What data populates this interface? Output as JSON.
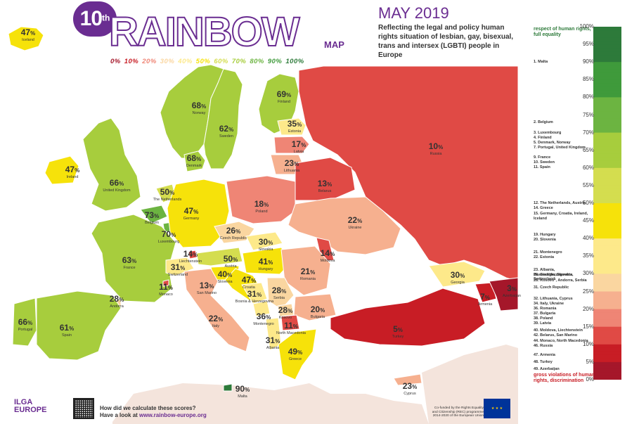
{
  "header": {
    "edition": "10",
    "edition_suffix": "th",
    "brand": "RAINBOW",
    "brand_sub": "MAP",
    "date": "MAY 2019",
    "subtitle": "Reflecting the legal and policy human rights situation of lesbian, gay, bisexual, trans and intersex (LGBTI) people in Europe",
    "scale_labels": [
      "0%",
      "10%",
      "20%",
      "30%",
      "40%",
      "50%",
      "60%",
      "70%",
      "80%",
      "90%",
      "100%"
    ]
  },
  "palette": {
    "sea": "#ffffff",
    "land_other": "#f4e4dc",
    "brand_purple": "#6a2d91",
    "scale": [
      "#a5172a",
      "#c81d25",
      "#e04a45",
      "#ef8575",
      "#f6b08f",
      "#fad6a0",
      "#fde98a",
      "#f6e20a",
      "#d4dd4f",
      "#a7cd3d",
      "#6cb441",
      "#3f9a3b",
      "#2d7a3a",
      "#1b6632"
    ]
  },
  "legend": {
    "top_label": "respect of human rights, full equality",
    "bottom_label": "gross violations of human rights, discrimination",
    "ticks": [
      "100%",
      "95%",
      "90%",
      "85%",
      "80%",
      "75%",
      "70%",
      "65%",
      "60%",
      "55%",
      "50%",
      "45%",
      "40%",
      "35%",
      "30%",
      "25%",
      "20%",
      "15%",
      "10%",
      "5%",
      "0%"
    ],
    "ranks": [
      {
        "score": 90,
        "text": "1. Malta"
      },
      {
        "score": 73,
        "text": "2. Belgium"
      },
      {
        "score": 70,
        "text": "3. Luxembourg"
      },
      {
        "score": 69,
        "text": "4. Finland"
      },
      {
        "score": 68,
        "text": "5. Denmark, Norway"
      },
      {
        "score": 66,
        "text": "7. Portugal, United Kingdom"
      },
      {
        "score": 63,
        "text": "9. France"
      },
      {
        "score": 62,
        "text": "10. Sweden"
      },
      {
        "score": 61,
        "text": "11. Spain"
      },
      {
        "score": 50,
        "text": "12. The Netherlands, Austria"
      },
      {
        "score": 49,
        "text": "14. Greece"
      },
      {
        "score": 47,
        "text": "15. Germany, Croatia, Ireland, Iceland"
      },
      {
        "score": 41,
        "text": "19. Hungary"
      },
      {
        "score": 40,
        "text": "20. Slovenia"
      },
      {
        "score": 36,
        "text": "21. Montenegro"
      },
      {
        "score": 35,
        "text": "22. Estonia"
      },
      {
        "score": 31,
        "text": "23. Albania, Bosnia&Herzegovina, Switzerland"
      },
      {
        "score": 30,
        "text": "26. Georgia, Slovakia"
      },
      {
        "score": 28,
        "text": "28. Kosovo*, Andorra, Serbia"
      },
      {
        "score": 26,
        "text": "31. Czech Republic"
      },
      {
        "score": 23,
        "text": "32. Lithuania, Cyprus"
      },
      {
        "score": 22,
        "text": "34. Italy, Ukraine"
      },
      {
        "score": 21,
        "text": "36. Romania"
      },
      {
        "score": 20,
        "text": "37. Bulgaria"
      },
      {
        "score": 18,
        "text": "38. Poland"
      },
      {
        "score": 17,
        "text": "39. Latvia"
      },
      {
        "score": 14,
        "text": "40. Moldova, Liechtenstein"
      },
      {
        "score": 13,
        "text": "42. Belarus, San Marino"
      },
      {
        "score": 11,
        "text": "44. Monaco, North Macedonia"
      },
      {
        "score": 10,
        "text": "46. Russia"
      },
      {
        "score": 7,
        "text": "47. Armenia"
      },
      {
        "score": 5,
        "text": "48. Turkey"
      },
      {
        "score": 3,
        "text": "49. Azerbaijan"
      }
    ]
  },
  "countries": [
    {
      "name": "Iceland",
      "score": 47
    },
    {
      "name": "Norway",
      "score": 68
    },
    {
      "name": "Sweden",
      "score": 62
    },
    {
      "name": "Finland",
      "score": 69
    },
    {
      "name": "Estonia",
      "score": 35
    },
    {
      "name": "Latvia",
      "score": 17
    },
    {
      "name": "Lithuania",
      "score": 23
    },
    {
      "name": "Russia",
      "score": 10
    },
    {
      "name": "Denmark",
      "score": 68
    },
    {
      "name": "Ireland",
      "score": 47
    },
    {
      "name": "United Kingdom",
      "score": 66
    },
    {
      "name": "The Netherlands",
      "score": 50
    },
    {
      "name": "Belgium",
      "score": 73
    },
    {
      "name": "Luxembourg",
      "score": 70
    },
    {
      "name": "Germany",
      "score": 47
    },
    {
      "name": "Poland",
      "score": 18
    },
    {
      "name": "Belarus",
      "score": 13
    },
    {
      "name": "Ukraine",
      "score": 22
    },
    {
      "name": "Czech Republic",
      "score": 26
    },
    {
      "name": "Slovakia",
      "score": 30
    },
    {
      "name": "France",
      "score": 63
    },
    {
      "name": "Liechtenstein",
      "score": 14
    },
    {
      "name": "Switzerland",
      "score": 31
    },
    {
      "name": "Austria",
      "score": 50
    },
    {
      "name": "Hungary",
      "score": 41
    },
    {
      "name": "Moldova",
      "score": 14
    },
    {
      "name": "Slovenia",
      "score": 40
    },
    {
      "name": "Croatia",
      "score": 47
    },
    {
      "name": "Romania",
      "score": 21
    },
    {
      "name": "Monaco",
      "score": 11
    },
    {
      "name": "San Marino",
      "score": 13
    },
    {
      "name": "Bosnia & Herzegovina",
      "score": 31
    },
    {
      "name": "Serbia",
      "score": 28
    },
    {
      "name": "Andorra",
      "score": 28
    },
    {
      "name": "Italy",
      "score": 22
    },
    {
      "name": "Montenegro",
      "score": 36
    },
    {
      "name": "Kosovo",
      "score": 28
    },
    {
      "name": "Bulgaria",
      "score": 20
    },
    {
      "name": "Portugal",
      "score": 66
    },
    {
      "name": "Spain",
      "score": 61
    },
    {
      "name": "North Macedonia",
      "score": 11
    },
    {
      "name": "Albania",
      "score": 31
    },
    {
      "name": "Greece",
      "score": 49
    },
    {
      "name": "Georgia",
      "score": 30
    },
    {
      "name": "Armenia",
      "score": 7
    },
    {
      "name": "Azerbaijan",
      "score": 3
    },
    {
      "name": "Turkey",
      "score": 5
    },
    {
      "name": "Malta",
      "score": 90
    },
    {
      "name": "Cyprus",
      "score": 23
    }
  ],
  "footer": {
    "org_line1": "ILGA",
    "org_line2": "EUROPE",
    "question": "How did we calculate these scores?",
    "link_prefix": "Have a look at ",
    "link": "www.rainbow-europe.org",
    "cofund": "Co-funded by the Rights Equality and Citizenship (REC) programme 2014-2020 of the European Union"
  }
}
